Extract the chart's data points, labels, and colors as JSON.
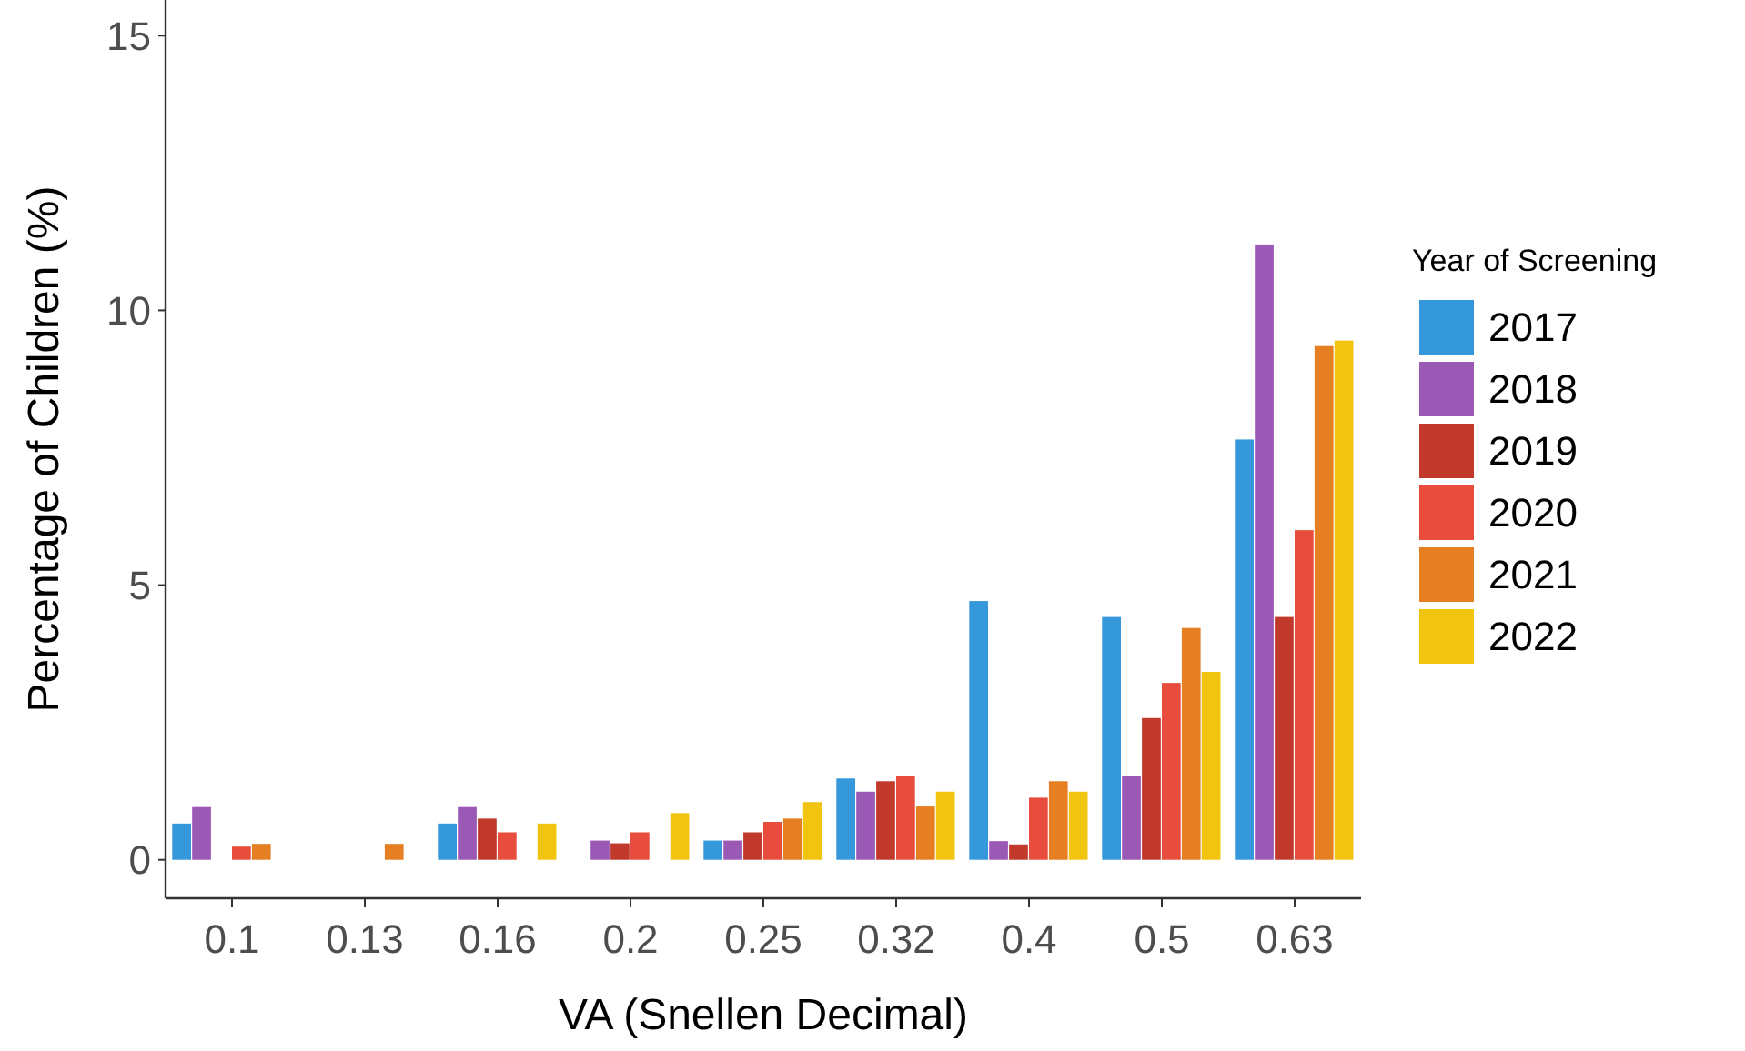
{
  "chart_data": {
    "type": "bar",
    "xlabel": "VA (Snellen Decimal)",
    "ylabel": "Percentage of Children (%)",
    "legend_title": "Year of Screening",
    "categories": [
      "0.1",
      "0.13",
      "0.16",
      "0.2",
      "0.25",
      "0.32",
      "0.4",
      "0.5",
      "0.63"
    ],
    "series": [
      {
        "name": "2017",
        "color": "#3498db",
        "values": [
          0.66,
          null,
          0.66,
          null,
          0.35,
          1.48,
          4.71,
          4.42,
          7.65
        ]
      },
      {
        "name": "2018",
        "color": "#9b59b6",
        "values": [
          0.96,
          null,
          0.96,
          0.35,
          0.35,
          1.24,
          0.34,
          1.52,
          11.2
        ]
      },
      {
        "name": "2019",
        "color": "#c0392b",
        "values": [
          null,
          null,
          0.75,
          0.3,
          0.5,
          1.43,
          0.28,
          2.58,
          4.42
        ]
      },
      {
        "name": "2020",
        "color": "#e74c3c",
        "values": [
          0.24,
          null,
          0.5,
          0.5,
          0.69,
          1.52,
          1.13,
          3.22,
          6.0
        ]
      },
      {
        "name": "2021",
        "color": "#e67e22",
        "values": [
          0.29,
          0.29,
          null,
          null,
          0.75,
          0.97,
          1.43,
          4.22,
          9.35
        ]
      },
      {
        "name": "2022",
        "color": "#f1c40f",
        "values": [
          null,
          null,
          0.66,
          0.85,
          1.05,
          1.24,
          1.24,
          3.42,
          9.45
        ]
      }
    ],
    "ylim": [
      -0.7,
      15.65
    ],
    "yticks": [
      0,
      5,
      10,
      15
    ],
    "grid": false,
    "legend": "right"
  }
}
